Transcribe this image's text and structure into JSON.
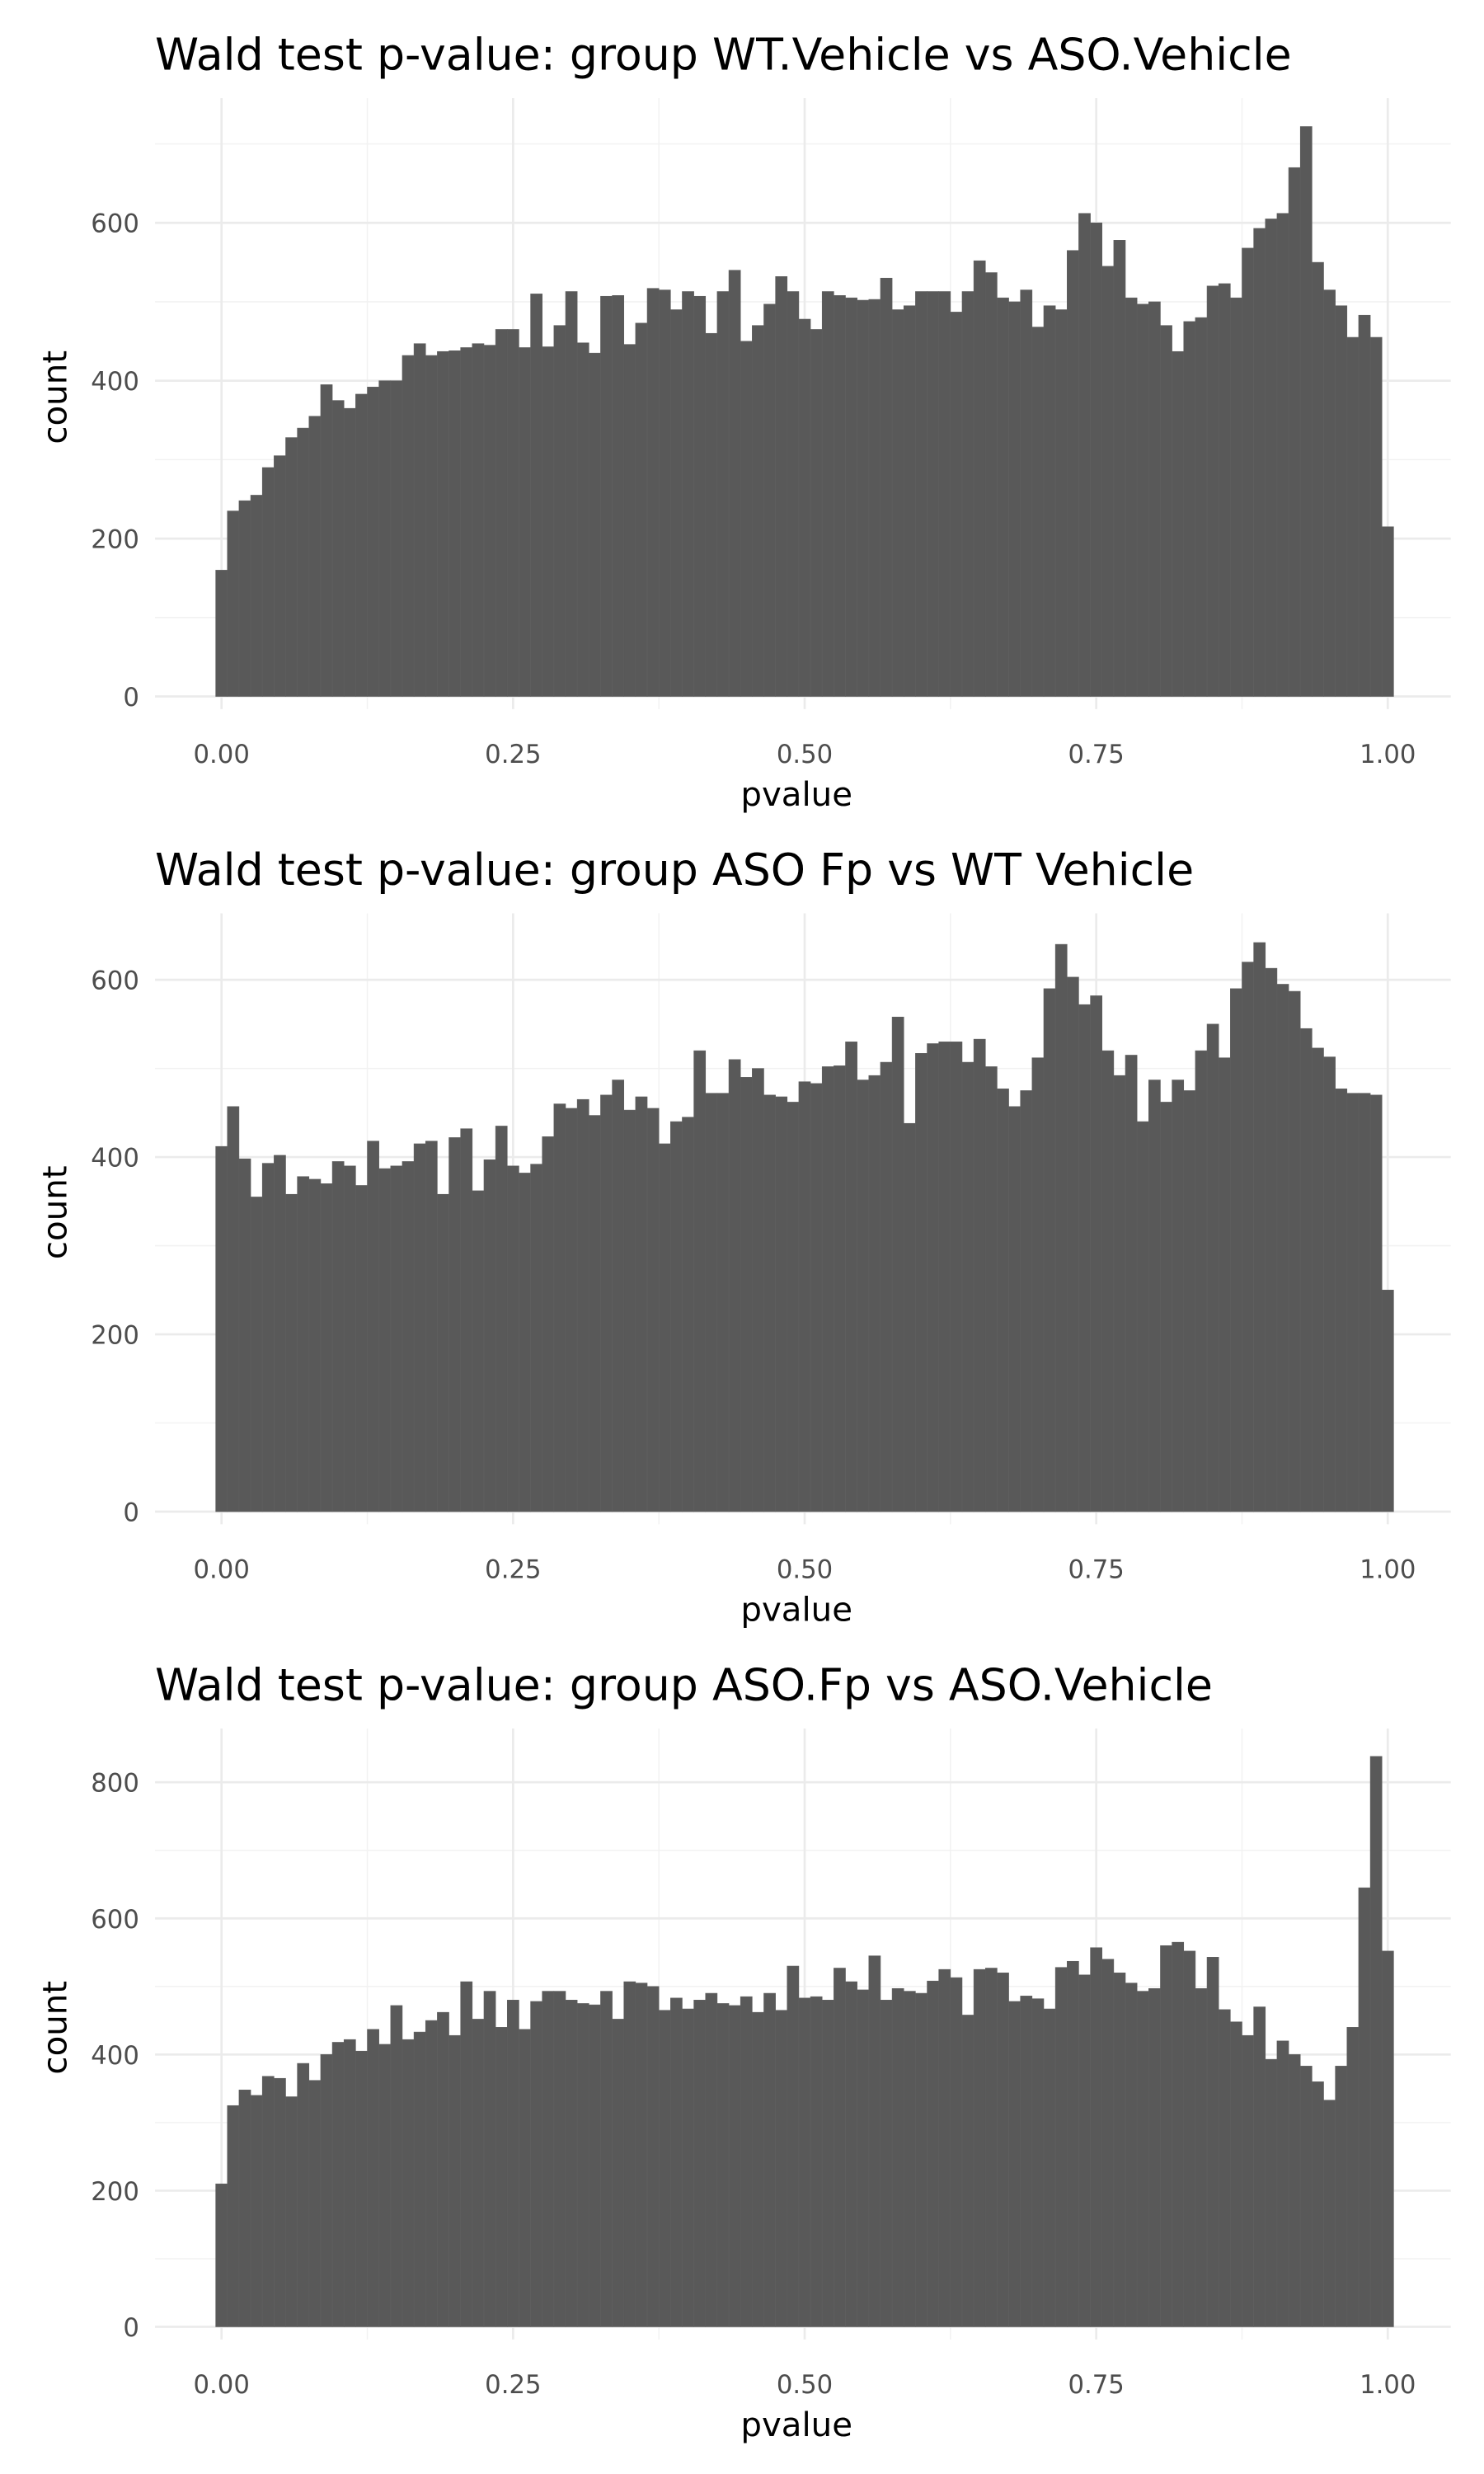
{
  "chart_data": [
    {
      "type": "histogram",
      "title": "Wald test p-value: group WT.Vehicle vs ASO.Vehicle",
      "x_label": "pvalue",
      "y_label": "count",
      "color": "#595959",
      "grid": true,
      "xlim": [
        -0.057,
        1.054
      ],
      "ylim": [
        0,
        758
      ],
      "xticks": [
        {
          "value": 0,
          "label": "0.00"
        },
        {
          "value": 0.25,
          "label": "0.25"
        },
        {
          "value": 0.5,
          "label": "0.50"
        },
        {
          "value": 0.75,
          "label": "0.75"
        },
        {
          "value": 1,
          "label": "1.00"
        }
      ],
      "xminor": [
        0.125,
        0.375,
        0.625,
        0.875
      ],
      "yticks": [
        0,
        200,
        400,
        600
      ],
      "yminor": [
        100,
        300,
        500,
        700
      ],
      "bins": [
        -0.005,
        0.005,
        0.015,
        0.025,
        0.035,
        0.045,
        0.055,
        0.065,
        0.075,
        0.085,
        0.095,
        0.105,
        0.115,
        0.125,
        0.135,
        0.145,
        0.155,
        0.165,
        0.175,
        0.185,
        0.195,
        0.205,
        0.215,
        0.225,
        0.235,
        0.245,
        0.255,
        0.265,
        0.275,
        0.285,
        0.295,
        0.305,
        0.315,
        0.325,
        0.335,
        0.345,
        0.355,
        0.365,
        0.375,
        0.385,
        0.395,
        0.405,
        0.415,
        0.425,
        0.435,
        0.445,
        0.455,
        0.465,
        0.475,
        0.485,
        0.495,
        0.505,
        0.515,
        0.525,
        0.535,
        0.545,
        0.555,
        0.565,
        0.575,
        0.585,
        0.595,
        0.605,
        0.615,
        0.625,
        0.635,
        0.645,
        0.655,
        0.665,
        0.675,
        0.685,
        0.695,
        0.705,
        0.715,
        0.725,
        0.735,
        0.745,
        0.755,
        0.765,
        0.775,
        0.785,
        0.795,
        0.805,
        0.815,
        0.825,
        0.835,
        0.845,
        0.855,
        0.865,
        0.875,
        0.885,
        0.895,
        0.905,
        0.915,
        0.925,
        0.935,
        0.945,
        0.955,
        0.965,
        0.975,
        0.985,
        0.995,
        1.005
      ],
      "values": [
        160,
        235,
        248,
        255,
        290,
        305,
        328,
        340,
        355,
        395,
        375,
        365,
        383,
        392,
        400,
        400,
        432,
        447,
        432,
        437,
        438,
        442,
        447,
        445,
        465,
        465,
        442,
        510,
        443,
        470,
        513,
        448,
        435,
        507,
        508,
        446,
        473,
        517,
        515,
        490,
        513,
        507,
        460,
        513,
        540,
        450,
        470,
        497,
        532,
        513,
        478,
        465,
        513,
        508,
        505,
        502,
        503,
        530,
        490,
        495,
        513,
        513,
        513,
        487,
        513,
        552,
        537,
        505,
        500,
        515,
        468,
        495,
        490,
        565,
        612,
        600,
        545,
        578,
        505,
        497,
        500,
        470,
        437,
        475,
        480,
        520,
        523,
        505,
        568,
        593,
        605,
        612,
        670,
        722,
        550,
        515,
        495,
        455,
        483,
        455,
        215
      ]
    },
    {
      "type": "histogram",
      "title": "Wald test p-value: group ASO Fp vs WT Vehicle",
      "x_label": "pvalue",
      "y_label": "count",
      "color": "#595959",
      "grid": true,
      "xlim": [
        -0.057,
        1.054
      ],
      "ylim": [
        0,
        675
      ],
      "xticks": [
        {
          "value": 0,
          "label": "0.00"
        },
        {
          "value": 0.25,
          "label": "0.25"
        },
        {
          "value": 0.5,
          "label": "0.50"
        },
        {
          "value": 0.75,
          "label": "0.75"
        },
        {
          "value": 1,
          "label": "1.00"
        }
      ],
      "xminor": [
        0.125,
        0.375,
        0.625,
        0.875
      ],
      "yticks": [
        0,
        200,
        400,
        600
      ],
      "yminor": [
        100,
        300,
        500
      ],
      "bins": [
        -0.005,
        0.005,
        0.015,
        0.025,
        0.035,
        0.045,
        0.055,
        0.065,
        0.075,
        0.085,
        0.095,
        0.105,
        0.115,
        0.125,
        0.135,
        0.145,
        0.155,
        0.165,
        0.175,
        0.185,
        0.195,
        0.205,
        0.215,
        0.225,
        0.235,
        0.245,
        0.255,
        0.265,
        0.275,
        0.285,
        0.295,
        0.305,
        0.315,
        0.325,
        0.335,
        0.345,
        0.355,
        0.365,
        0.375,
        0.385,
        0.395,
        0.405,
        0.415,
        0.425,
        0.435,
        0.445,
        0.455,
        0.465,
        0.475,
        0.485,
        0.495,
        0.505,
        0.515,
        0.525,
        0.535,
        0.545,
        0.555,
        0.565,
        0.575,
        0.585,
        0.595,
        0.605,
        0.615,
        0.625,
        0.635,
        0.645,
        0.655,
        0.665,
        0.675,
        0.685,
        0.695,
        0.705,
        0.715,
        0.725,
        0.735,
        0.745,
        0.755,
        0.765,
        0.775,
        0.785,
        0.795,
        0.805,
        0.815,
        0.825,
        0.835,
        0.845,
        0.855,
        0.865,
        0.875,
        0.885,
        0.895,
        0.905,
        0.915,
        0.925,
        0.935,
        0.945,
        0.955,
        0.965,
        0.975,
        0.985,
        0.995,
        1.005
      ],
      "values": [
        412,
        457,
        398,
        355,
        393,
        402,
        358,
        378,
        375,
        370,
        395,
        390,
        368,
        418,
        387,
        390,
        395,
        415,
        418,
        358,
        422,
        432,
        362,
        397,
        435,
        390,
        382,
        392,
        423,
        460,
        455,
        465,
        447,
        470,
        487,
        453,
        468,
        455,
        415,
        440,
        445,
        520,
        472,
        472,
        510,
        490,
        500,
        470,
        468,
        462,
        485,
        483,
        502,
        503,
        530,
        487,
        492,
        507,
        558,
        438,
        517,
        528,
        530,
        530,
        507,
        533,
        502,
        477,
        457,
        475,
        512,
        590,
        640,
        603,
        572,
        582,
        520,
        492,
        515,
        440,
        487,
        462,
        487,
        475,
        520,
        550,
        512,
        590,
        620,
        642,
        613,
        595,
        587,
        545,
        523,
        513,
        477,
        472,
        472,
        470,
        250
      ]
    },
    {
      "type": "histogram",
      "title": "Wald test p-value: group ASO.Fp vs ASO.Vehicle",
      "x_label": "pvalue",
      "y_label": "count",
      "color": "#595959",
      "grid": true,
      "xlim": [
        -0.057,
        1.054
      ],
      "ylim": [
        0,
        879
      ],
      "xticks": [
        {
          "value": 0,
          "label": "0.00"
        },
        {
          "value": 0.25,
          "label": "0.25"
        },
        {
          "value": 0.5,
          "label": "0.50"
        },
        {
          "value": 0.75,
          "label": "0.75"
        },
        {
          "value": 1,
          "label": "1.00"
        }
      ],
      "xminor": [
        0.125,
        0.375,
        0.625,
        0.875
      ],
      "yticks": [
        0,
        200,
        400,
        600,
        800
      ],
      "yminor": [
        100,
        300,
        500,
        700
      ],
      "bins": [
        -0.005,
        0.005,
        0.015,
        0.025,
        0.035,
        0.045,
        0.055,
        0.065,
        0.075,
        0.085,
        0.095,
        0.105,
        0.115,
        0.125,
        0.135,
        0.145,
        0.155,
        0.165,
        0.175,
        0.185,
        0.195,
        0.205,
        0.215,
        0.225,
        0.235,
        0.245,
        0.255,
        0.265,
        0.275,
        0.285,
        0.295,
        0.305,
        0.315,
        0.325,
        0.335,
        0.345,
        0.355,
        0.365,
        0.375,
        0.385,
        0.395,
        0.405,
        0.415,
        0.425,
        0.435,
        0.445,
        0.455,
        0.465,
        0.475,
        0.485,
        0.495,
        0.505,
        0.515,
        0.525,
        0.535,
        0.545,
        0.555,
        0.565,
        0.575,
        0.585,
        0.595,
        0.605,
        0.615,
        0.625,
        0.635,
        0.645,
        0.655,
        0.665,
        0.675,
        0.685,
        0.695,
        0.705,
        0.715,
        0.725,
        0.735,
        0.745,
        0.755,
        0.765,
        0.775,
        0.785,
        0.795,
        0.805,
        0.815,
        0.825,
        0.835,
        0.845,
        0.855,
        0.865,
        0.875,
        0.885,
        0.895,
        0.905,
        0.915,
        0.925,
        0.935,
        0.945,
        0.955,
        0.965,
        0.975,
        0.985,
        0.995,
        1.005
      ],
      "values": [
        210,
        325,
        348,
        340,
        368,
        365,
        338,
        387,
        362,
        400,
        418,
        422,
        405,
        437,
        415,
        472,
        422,
        433,
        450,
        462,
        428,
        507,
        452,
        493,
        440,
        480,
        437,
        478,
        493,
        493,
        480,
        475,
        473,
        493,
        452,
        507,
        505,
        500,
        465,
        483,
        467,
        480,
        490,
        475,
        472,
        485,
        462,
        490,
        465,
        530,
        483,
        485,
        480,
        527,
        507,
        495,
        545,
        480,
        497,
        493,
        490,
        508,
        525,
        513,
        458,
        525,
        527,
        520,
        478,
        486,
        482,
        467,
        528,
        537,
        517,
        557,
        540,
        520,
        505,
        493,
        497,
        560,
        565,
        552,
        497,
        543,
        466,
        448,
        428,
        470,
        393,
        420,
        400,
        383,
        360,
        333,
        383,
        440,
        645,
        838,
        552
      ]
    }
  ]
}
